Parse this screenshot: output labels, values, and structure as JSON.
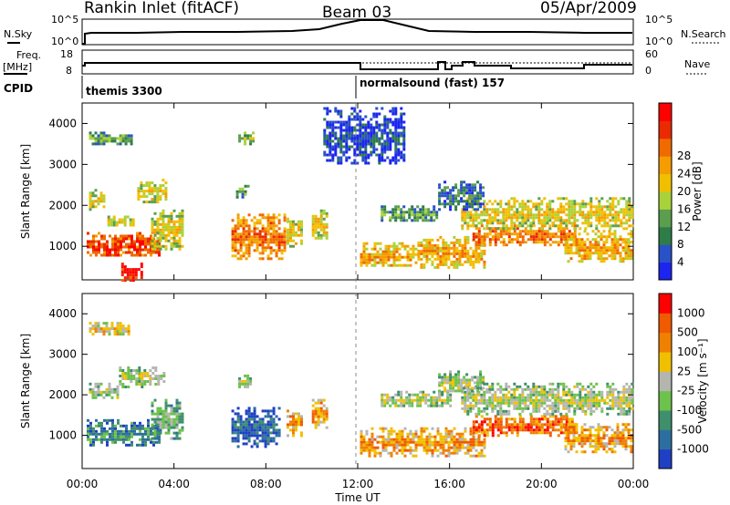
{
  "header": {
    "station": "Rankin Inlet (fitACF)",
    "beam": "Beam 03",
    "date": "05/Apr/2009"
  },
  "noise_panel": {
    "left_label": "N.Sky",
    "left_ticks": [
      "10^5",
      "10^0"
    ],
    "right_label": "N.Search",
    "right_ticks": [
      "10^5",
      "10^0"
    ]
  },
  "freq_panel": {
    "left_label_line1": "Freq.",
    "left_label_line2": "[MHz]",
    "left_ticks": [
      "18",
      "8"
    ],
    "right_label": "Nave",
    "right_ticks": [
      "60",
      "0"
    ]
  },
  "cpid": {
    "label": "CPID",
    "segments": [
      {
        "name": "themis 3300",
        "start_hour": 0
      },
      {
        "name": "normalsound (fast) 157",
        "start_hour": 11.9
      }
    ]
  },
  "chart_data": [
    {
      "type": "heatmap",
      "title": "Power",
      "xlabel": "Time UT",
      "ylabel": "Slant Range [km]",
      "xlim": [
        0,
        24
      ],
      "ylim": [
        180,
        4500
      ],
      "xticks": [
        "00:00",
        "04:00",
        "08:00",
        "12:00",
        "16:00",
        "20:00",
        "00:00"
      ],
      "yticks": [
        1000,
        2000,
        3000,
        4000
      ],
      "colorbar": {
        "label": "Power [dB]",
        "ticks": [
          "4",
          "8",
          "12",
          "16",
          "20",
          "24",
          "28"
        ],
        "colors": [
          "#1c24f0",
          "#2a52c8",
          "#2e7d48",
          "#5b9e4e",
          "#a8d23a",
          "#f0c000",
          "#f59c00",
          "#f06a00",
          "#ea2a00",
          "#ff0000"
        ]
      },
      "regions": [
        {
          "t0": 0.2,
          "t1": 3.3,
          "r0": 750,
          "r1": 1350,
          "level": 8
        },
        {
          "t0": 0.3,
          "t1": 1.0,
          "r0": 1900,
          "r1": 2400,
          "level": 5
        },
        {
          "t0": 1.1,
          "t1": 2.2,
          "r0": 1500,
          "r1": 1750,
          "level": 5
        },
        {
          "t0": 2.4,
          "t1": 3.6,
          "r0": 2100,
          "r1": 2650,
          "level": 5
        },
        {
          "t0": 1.7,
          "t1": 2.6,
          "r0": 180,
          "r1": 600,
          "level": 9
        },
        {
          "t0": 3.0,
          "t1": 4.4,
          "r0": 900,
          "r1": 1900,
          "level": 5
        },
        {
          "t0": 0.3,
          "t1": 2.2,
          "r0": 3500,
          "r1": 3800,
          "level": 3
        },
        {
          "t0": 6.8,
          "t1": 7.4,
          "r0": 3500,
          "r1": 3800,
          "level": 4
        },
        {
          "t0": 6.7,
          "t1": 7.2,
          "r0": 2200,
          "r1": 2500,
          "level": 3
        },
        {
          "t0": 6.5,
          "t1": 8.8,
          "r0": 700,
          "r1": 1800,
          "level": 7
        },
        {
          "t0": 8.9,
          "t1": 9.6,
          "r0": 1000,
          "r1": 1700,
          "level": 5
        },
        {
          "t0": 10.0,
          "t1": 10.6,
          "r0": 1200,
          "r1": 1900,
          "level": 5
        },
        {
          "t0": 12.1,
          "t1": 14.6,
          "r0": 500,
          "r1": 1100,
          "level": 6
        },
        {
          "t0": 14.6,
          "t1": 17.5,
          "r0": 500,
          "r1": 1250,
          "level": 6
        },
        {
          "t0": 17.0,
          "t1": 21.5,
          "r0": 1000,
          "r1": 1600,
          "level": 7
        },
        {
          "t0": 21.0,
          "t1": 23.9,
          "r0": 600,
          "r1": 1400,
          "level": 6
        },
        {
          "t0": 16.5,
          "t1": 23.9,
          "r0": 1450,
          "r1": 2200,
          "level": 5
        },
        {
          "t0": 13.0,
          "t1": 15.5,
          "r0": 1600,
          "r1": 2000,
          "level": 3
        },
        {
          "t0": 15.5,
          "t1": 17.5,
          "r0": 1900,
          "r1": 2600,
          "level": 2
        },
        {
          "t0": 10.5,
          "t1": 14.0,
          "r0": 3000,
          "r1": 4400,
          "level": 1
        }
      ]
    },
    {
      "type": "heatmap",
      "title": "Velocity",
      "xlabel": "Time UT",
      "ylabel": "Slant Range [km]",
      "xlim": [
        0,
        24
      ],
      "ylim": [
        180,
        4500
      ],
      "xticks": [
        "00:00",
        "04:00",
        "08:00",
        "12:00",
        "16:00",
        "20:00",
        "00:00"
      ],
      "yticks": [
        1000,
        2000,
        3000,
        4000
      ],
      "colorbar": {
        "label": "Velocity [m s⁻¹]",
        "ticks": [
          "1000",
          "500",
          "100",
          "25",
          "-25",
          "-100",
          "-500",
          "-1000"
        ],
        "colors": [
          "#1f3fc4",
          "#2d6ea0",
          "#3f8f6c",
          "#6cc24a",
          "#b5b5b0",
          "#f0c000",
          "#f08000",
          "#f05a00",
          "#ff0000"
        ]
      },
      "regions": [
        {
          "t0": 0.2,
          "t1": 3.3,
          "r0": 750,
          "r1": 1400,
          "level": 2
        },
        {
          "t0": 0.3,
          "t1": 1.5,
          "r0": 1900,
          "r1": 2300,
          "level": 4
        },
        {
          "t0": 1.6,
          "t1": 3.6,
          "r0": 2200,
          "r1": 2700,
          "level": 4
        },
        {
          "t0": 3.0,
          "t1": 4.4,
          "r0": 900,
          "r1": 1900,
          "level": 3
        },
        {
          "t0": 6.5,
          "t1": 8.6,
          "r0": 700,
          "r1": 1700,
          "level": 1
        },
        {
          "t0": 8.9,
          "t1": 9.6,
          "r0": 1000,
          "r1": 1700,
          "level": 6
        },
        {
          "t0": 10.0,
          "t1": 10.7,
          "r0": 1200,
          "r1": 1900,
          "level": 6
        },
        {
          "t0": 6.8,
          "t1": 7.3,
          "r0": 2200,
          "r1": 2500,
          "level": 4
        },
        {
          "t0": 12.1,
          "t1": 17.5,
          "r0": 500,
          "r1": 1200,
          "level": 6
        },
        {
          "t0": 17.0,
          "t1": 21.5,
          "r0": 1000,
          "r1": 1500,
          "level": 7
        },
        {
          "t0": 21.0,
          "t1": 23.9,
          "r0": 600,
          "r1": 1300,
          "level": 6
        },
        {
          "t0": 16.5,
          "t1": 23.9,
          "r0": 1500,
          "r1": 2300,
          "level": 4
        },
        {
          "t0": 13.0,
          "t1": 16.0,
          "r0": 1700,
          "r1": 2100,
          "level": 4
        },
        {
          "t0": 15.5,
          "t1": 17.5,
          "r0": 2000,
          "r1": 2600,
          "level": 4
        },
        {
          "t0": 0.3,
          "t1": 2.0,
          "r0": 3500,
          "r1": 3800,
          "level": 5
        }
      ]
    }
  ]
}
